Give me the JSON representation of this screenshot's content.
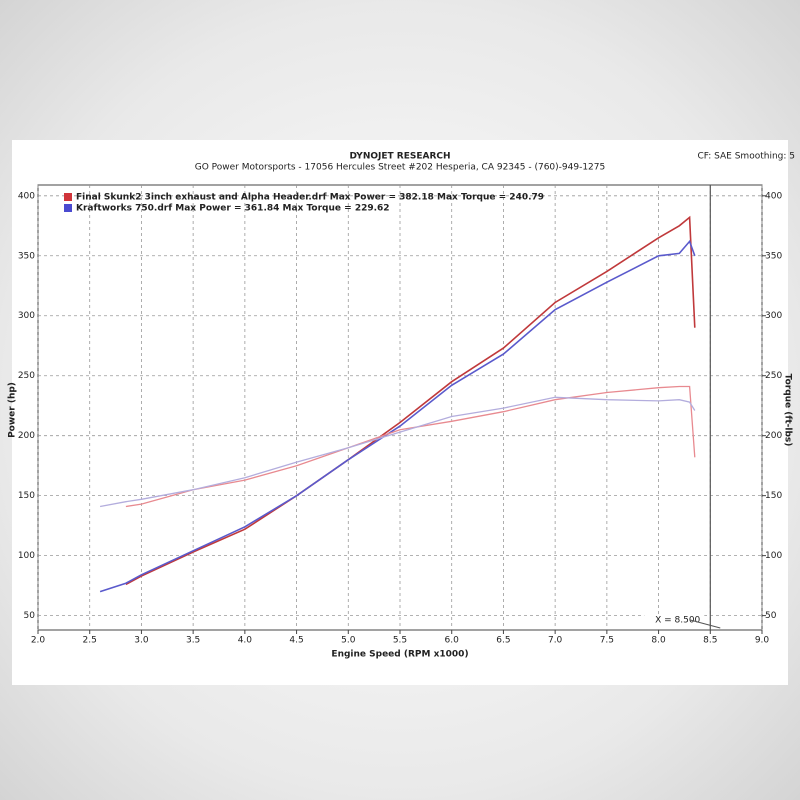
{
  "chart_data": {
    "type": "line",
    "title": "DYNOJET RESEARCH",
    "subtitle": "GO Power Motorsports - 17056 Hercules Street #202 Hesperia, CA 92345 - (760)-949-1275",
    "settings_text": "CF: SAE  Smoothing: 5",
    "xlabel": "Engine Speed (RPM x1000)",
    "ylabel": "Power (hp)",
    "y2label": "Torque (ft-lbs)",
    "legend": [
      "Final Skunk2 3inch exhaust and Alpha Header.drf Max Power = 382.18 Max Torque = 240.79",
      "Kraftworks 750.drf Max Power = 361.84 Max Torque = 229.62"
    ],
    "legend_colors": [
      "#d0343a",
      "#4a4ad0"
    ],
    "cursor": {
      "x": 8.5,
      "label": "X = 8.500"
    },
    "x": [
      2.6,
      2.85,
      3.0,
      3.5,
      4.0,
      4.5,
      5.0,
      5.5,
      6.0,
      6.5,
      7.0,
      7.5,
      8.0,
      8.2,
      8.3,
      8.35
    ],
    "series": [
      {
        "color": "#c0393b",
        "values": [
          null,
          76,
          83,
          103,
          122,
          150,
          180,
          211,
          245,
          273,
          311,
          337,
          365,
          375,
          382,
          290
        ]
      },
      {
        "color": "#5a5acc",
        "values": [
          70,
          77,
          84,
          104,
          124,
          150,
          180,
          208,
          242,
          268,
          305,
          328,
          350,
          352,
          362,
          350
        ]
      },
      {
        "color": "#e88a90",
        "axis": "y2",
        "values": [
          null,
          141,
          143,
          155,
          163,
          175,
          190,
          205,
          212,
          220,
          230,
          236,
          240,
          241,
          241,
          182
        ]
      },
      {
        "color": "#b3addd",
        "axis": "y2",
        "values": [
          141,
          145,
          147,
          155,
          165,
          178,
          190,
          203,
          216,
          223,
          232,
          230,
          229,
          230,
          228,
          221
        ]
      }
    ],
    "xlim": [
      2.0,
      9.0
    ],
    "xticks": [
      {
        "value": 2,
        "label": "2.0"
      },
      2.5,
      {
        "value": 3,
        "label": "3.0"
      },
      3.5,
      {
        "value": 4,
        "label": "4.0"
      },
      4.5,
      {
        "value": 5,
        "label": "5.0"
      },
      5.5,
      {
        "value": 6,
        "label": "6.0"
      },
      6.5,
      {
        "value": 7,
        "label": "7.0"
      },
      7.5,
      {
        "value": 8,
        "label": "8.0"
      },
      8.5,
      {
        "value": 9,
        "label": "9.0"
      }
    ],
    "ylim": [
      38,
      409
    ],
    "yticks": [
      50,
      100,
      150,
      200,
      250,
      300,
      350,
      400
    ],
    "y2lim": [
      38,
      409
    ],
    "y2ticks": [
      50,
      100,
      150,
      200,
      250,
      300,
      350,
      400
    ],
    "grid": true
  }
}
